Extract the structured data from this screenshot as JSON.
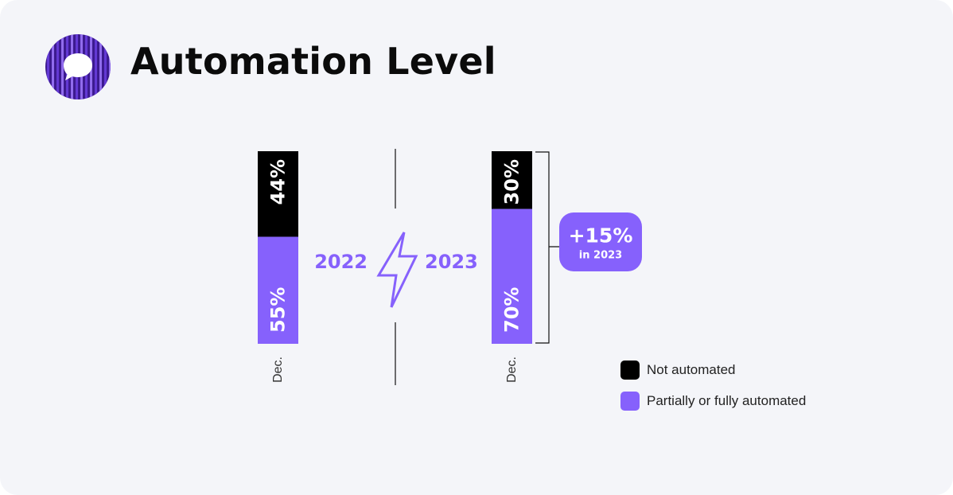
{
  "header": {
    "title": "Automation Level",
    "logo_icon": "chat-bubble-icon"
  },
  "colors": {
    "background": "#f4f5f9",
    "not_automated": "#000000",
    "automated": "#8661fc",
    "logo_dark": "#3c1a8f",
    "text": "#0b0b0b"
  },
  "chart_data": {
    "type": "bar",
    "stacked": true,
    "categories": [
      "2022",
      "2023"
    ],
    "category_sublabels": [
      "Dec.",
      "Dec."
    ],
    "series": [
      {
        "name": "Not automated",
        "values": [
          44,
          30
        ]
      },
      {
        "name": "Partially or fully automated",
        "values": [
          55,
          70
        ]
      }
    ],
    "value_labels": {
      "not_automated": [
        "44%",
        "30%"
      ],
      "automated": [
        "55%",
        "70%"
      ]
    },
    "year_labels": [
      "2022",
      "2023"
    ],
    "annotation": {
      "value": "+15%",
      "note": "in 2023"
    },
    "legend": {
      "position": "bottom-right",
      "entries": [
        "Not automated",
        "Partially or fully automated"
      ]
    },
    "divider_icon": "lightning-bolt-icon"
  }
}
